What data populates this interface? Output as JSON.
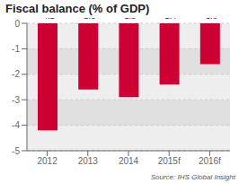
{
  "chart_data": {
    "type": "bar",
    "title": "Fiscal balance (% of GDP)",
    "categories": [
      "2012",
      "2013",
      "2014",
      "2015f",
      "2016f"
    ],
    "values": [
      -4.2,
      -2.6,
      -2.9,
      -2.4,
      -1.6
    ],
    "color": "#cc0033",
    "ylim": [
      -5,
      0
    ],
    "yticks": [
      0,
      -1,
      -2,
      -3,
      -4,
      -5
    ],
    "grid": true,
    "data_labels": true,
    "annotations": [
      "Source: IHS Global Insight"
    ]
  }
}
